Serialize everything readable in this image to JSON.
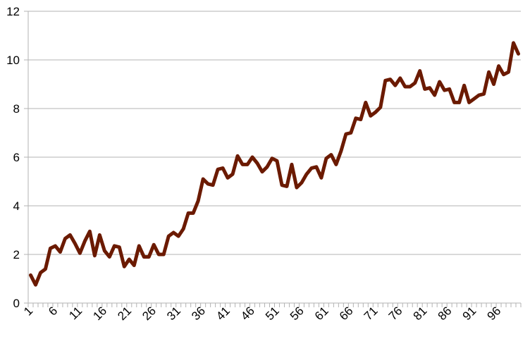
{
  "chart_data": {
    "type": "line",
    "title": "",
    "xlabel": "",
    "ylabel": "",
    "ylim": [
      0,
      12
    ],
    "yticks": [
      "0",
      "2",
      "4",
      "6",
      "8",
      "10",
      "12"
    ],
    "x": [
      1,
      2,
      3,
      4,
      5,
      6,
      7,
      8,
      9,
      10,
      11,
      12,
      13,
      14,
      15,
      16,
      17,
      18,
      19,
      20,
      21,
      22,
      23,
      24,
      25,
      26,
      27,
      28,
      29,
      30,
      31,
      32,
      33,
      34,
      35,
      36,
      37,
      38,
      39,
      40,
      41,
      42,
      43,
      44,
      45,
      46,
      47,
      48,
      49,
      50,
      51,
      52,
      53,
      54,
      55,
      56,
      57,
      58,
      59,
      60,
      61,
      62,
      63,
      64,
      65,
      66,
      67,
      68,
      69,
      70,
      71,
      72,
      73,
      74,
      75,
      76,
      77,
      78,
      79,
      80,
      81,
      82,
      83,
      84,
      85,
      86,
      87,
      88,
      89,
      90,
      91,
      92,
      93,
      94,
      95,
      96,
      97,
      98,
      99,
      100
    ],
    "x_tick_labels": [
      "1",
      "6",
      "11",
      "16",
      "21",
      "26",
      "31",
      "36",
      "41",
      "46",
      "51",
      "56",
      "61",
      "66",
      "71",
      "76",
      "81",
      "86",
      "91",
      "96"
    ],
    "grid": true,
    "legend": "none",
    "series": [
      {
        "color": "#6b1a00",
        "values": [
          1.15,
          0.75,
          1.25,
          1.4,
          2.25,
          2.35,
          2.1,
          2.65,
          2.8,
          2.45,
          2.05,
          2.55,
          2.95,
          1.95,
          2.8,
          2.15,
          1.9,
          2.35,
          2.3,
          1.5,
          1.8,
          1.55,
          2.35,
          1.9,
          1.9,
          2.4,
          2.0,
          2.0,
          2.75,
          2.9,
          2.75,
          3.05,
          3.7,
          3.7,
          4.2,
          5.1,
          4.9,
          4.85,
          5.5,
          5.55,
          5.15,
          5.3,
          6.05,
          5.7,
          5.7,
          6.0,
          5.75,
          5.4,
          5.6,
          5.95,
          5.85,
          4.85,
          4.8,
          5.7,
          4.75,
          4.95,
          5.3,
          5.55,
          5.6,
          5.15,
          5.95,
          6.1,
          5.7,
          6.25,
          6.95,
          7.0,
          7.6,
          7.55,
          8.25,
          7.7,
          7.85,
          8.05,
          9.15,
          9.2,
          8.95,
          9.25,
          8.9,
          8.9,
          9.05,
          9.55,
          8.8,
          8.85,
          8.55,
          9.1,
          8.75,
          8.8,
          8.25,
          8.25,
          8.95,
          8.25,
          8.4,
          8.55,
          8.6,
          9.5,
          9.0,
          9.75,
          9.4,
          9.5,
          10.7,
          10.25
        ]
      }
    ]
  }
}
